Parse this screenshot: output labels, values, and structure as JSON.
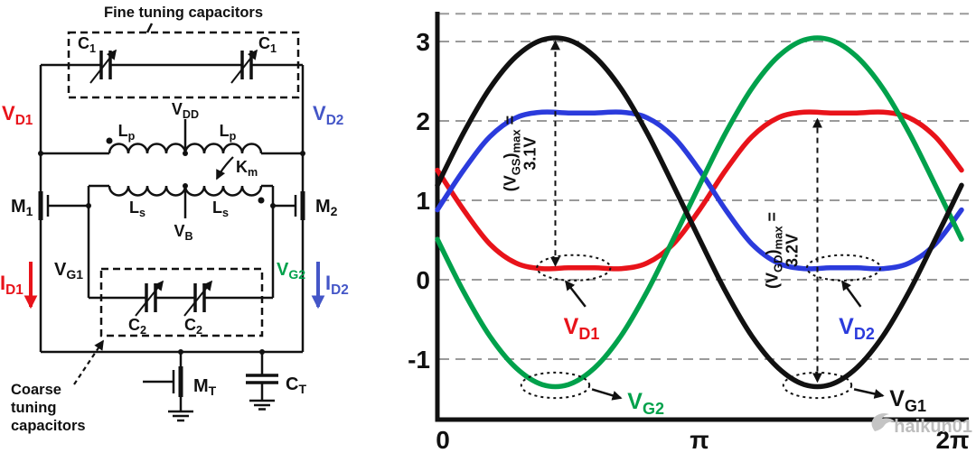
{
  "colors": {
    "red": "#e8131a",
    "blue": "#4456c7",
    "green": "#00A14B",
    "black": "#111111",
    "grid": "#9a9a9a",
    "watermark": "#bdbdbd"
  },
  "circuit": {
    "fine_box_title": "Fine tuning capacitors",
    "coarse_label": [
      "Coarse",
      "tuning",
      "capacitors"
    ],
    "components": {
      "c1_left": {
        "m": "C",
        "s": "1"
      },
      "c1_right": {
        "m": "C",
        "s": "1"
      },
      "vdd": {
        "m": "V",
        "s": "DD"
      },
      "lp_left": {
        "m": "L",
        "s": "p"
      },
      "lp_right": {
        "m": "L",
        "s": "p"
      },
      "km": {
        "m": "K",
        "s": "m"
      },
      "ls_left": {
        "m": "L",
        "s": "s"
      },
      "ls_right": {
        "m": "L",
        "s": "s"
      },
      "m1": {
        "m": "M",
        "s": "1"
      },
      "m2": {
        "m": "M",
        "s": "2"
      },
      "mt": {
        "m": "M",
        "s": "T"
      },
      "ct": {
        "m": "C",
        "s": "T"
      },
      "c2_left": {
        "m": "C",
        "s": "2"
      },
      "c2_right": {
        "m": "C",
        "s": "2"
      },
      "vd1": {
        "m": "V",
        "s": "D1"
      },
      "vd2": {
        "m": "V",
        "s": "D2"
      },
      "vg1": {
        "m": "V",
        "s": "G1"
      },
      "vg2": {
        "m": "V",
        "s": "G2"
      },
      "vb": {
        "m": "V",
        "s": "B"
      },
      "id1": {
        "m": "I",
        "s": "D1"
      },
      "id2": {
        "m": "I",
        "s": "D2"
      }
    }
  },
  "chart_data": {
    "type": "line",
    "title": "",
    "x_axis": {
      "unit": "phase (radians)",
      "range_pi": [
        0,
        2
      ],
      "ticks": [
        {
          "label": "0",
          "u": 0,
          "dx": 6
        },
        {
          "label": "π",
          "u": 1,
          "dx": 0
        },
        {
          "label": "2π",
          "u": 2,
          "dx": -10
        }
      ]
    },
    "y_axis": {
      "unit": "V",
      "range": [
        -1.76,
        3.35
      ],
      "ticks": [
        {
          "label": "3",
          "v": 3
        },
        {
          "label": "2",
          "v": 2
        },
        {
          "label": "1",
          "v": 1
        },
        {
          "label": "0",
          "v": 0
        },
        {
          "label": "-1",
          "v": -1
        }
      ],
      "grid_values": [
        3.35,
        3,
        2,
        1,
        0,
        -1
      ]
    },
    "x_values_pi": [
      0,
      0.1,
      0.2,
      0.3,
      0.4,
      0.5,
      0.6,
      0.7,
      0.8,
      0.9,
      1,
      1.1,
      1.2,
      1.3,
      1.4,
      1.5,
      1.6,
      1.7,
      1.8,
      1.9,
      2
    ],
    "series": [
      {
        "name": "V_D1",
        "label": {
          "m": "V",
          "s": "D1"
        },
        "color": "#e8131a",
        "values": [
          1.38,
          0.88,
          0.45,
          0.21,
          0.14,
          0.15,
          0.15,
          0.14,
          0.21,
          0.45,
          0.88,
          1.38,
          1.8,
          2.04,
          2.11,
          2.1,
          2.1,
          2.11,
          2.04,
          1.8,
          1.38
        ]
      },
      {
        "name": "V_D2",
        "label": {
          "m": "V",
          "s": "D2"
        },
        "color": "#2b3bdc",
        "values": [
          0.88,
          1.38,
          1.8,
          2.04,
          2.11,
          2.1,
          2.1,
          2.11,
          2.04,
          1.8,
          1.38,
          0.88,
          0.45,
          0.21,
          0.14,
          0.15,
          0.15,
          0.14,
          0.21,
          0.45,
          0.88
        ]
      },
      {
        "name": "V_G2",
        "label": {
          "m": "V",
          "s": "G2"
        },
        "color": "#00A14B",
        "values": [
          0.51,
          -0.15,
          -0.71,
          -1.11,
          -1.32,
          -1.32,
          -1.11,
          -0.71,
          -0.15,
          0.51,
          1.19,
          1.85,
          2.41,
          2.81,
          3.02,
          3.02,
          2.81,
          2.41,
          1.85,
          1.19,
          0.51
        ]
      },
      {
        "name": "V_G1",
        "label": {
          "m": "V",
          "s": "G1"
        },
        "color": "#111111",
        "values": [
          1.19,
          1.85,
          2.41,
          2.81,
          3.02,
          3.02,
          2.81,
          2.41,
          1.85,
          1.19,
          0.51,
          -0.15,
          -0.71,
          -1.11,
          -1.32,
          -1.32,
          -1.11,
          -0.71,
          -0.15,
          0.51,
          1.19
        ]
      }
    ],
    "annotations": {
      "vgs_arrow": {
        "x_pi": 0.45,
        "y_from": 0.18,
        "y_to": 3.0,
        "label": {
          "pre": "(V",
          "sub": "GS",
          "post": ")",
          "sub2": "max",
          "eq": " ="
        },
        "value": "3.1V"
      },
      "vgd_arrow": {
        "x_pi": 1.45,
        "y_from": -1.28,
        "y_to": 2.02,
        "label": {
          "pre": "(V",
          "sub": "GD",
          "post": ")",
          "sub2": "max",
          "eq": " ="
        },
        "value": "3.2V"
      },
      "callouts": [
        {
          "series": "V_D1",
          "ellipse": {
            "cx_pi": 0.52,
            "cy": 0.15,
            "rx_pi": 0.14,
            "ry_v": 0.16
          },
          "arrow": {
            "from_pi": [
              0.565,
              -0.34
            ],
            "to_pi": [
              0.49,
              -0.02
            ]
          },
          "label_pos": {
            "x_pi": 0.55,
            "y": -0.58,
            "anchor": "middle"
          }
        },
        {
          "series": "V_G2",
          "ellipse": {
            "cx_pi": 0.45,
            "cy": -1.33,
            "rx_pi": 0.13,
            "ry_v": 0.16
          },
          "arrow": {
            "from_pi": [
              0.59,
              -1.38
            ],
            "to_pi": [
              0.7,
              -1.49
            ]
          },
          "label_pos": {
            "x_pi": 0.725,
            "y": -1.52,
            "anchor": "start"
          }
        },
        {
          "series": "V_D2",
          "ellipse": {
            "cx_pi": 1.55,
            "cy": 0.15,
            "rx_pi": 0.14,
            "ry_v": 0.16
          },
          "arrow": {
            "from_pi": [
              1.615,
              -0.34
            ],
            "to_pi": [
              1.545,
              -0.02
            ]
          },
          "label_pos": {
            "x_pi": 1.6,
            "y": -0.58,
            "anchor": "middle"
          }
        },
        {
          "series": "V_G1",
          "ellipse": {
            "cx_pi": 1.45,
            "cy": -1.33,
            "rx_pi": 0.13,
            "ry_v": 0.16
          },
          "arrow": {
            "from_pi": [
              1.59,
              -1.38
            ],
            "to_pi": [
              1.7,
              -1.46
            ]
          },
          "label_pos": {
            "x_pi": 1.725,
            "y": -1.49,
            "anchor": "start"
          }
        }
      ]
    },
    "watermark": {
      "text": "haikun01"
    }
  }
}
